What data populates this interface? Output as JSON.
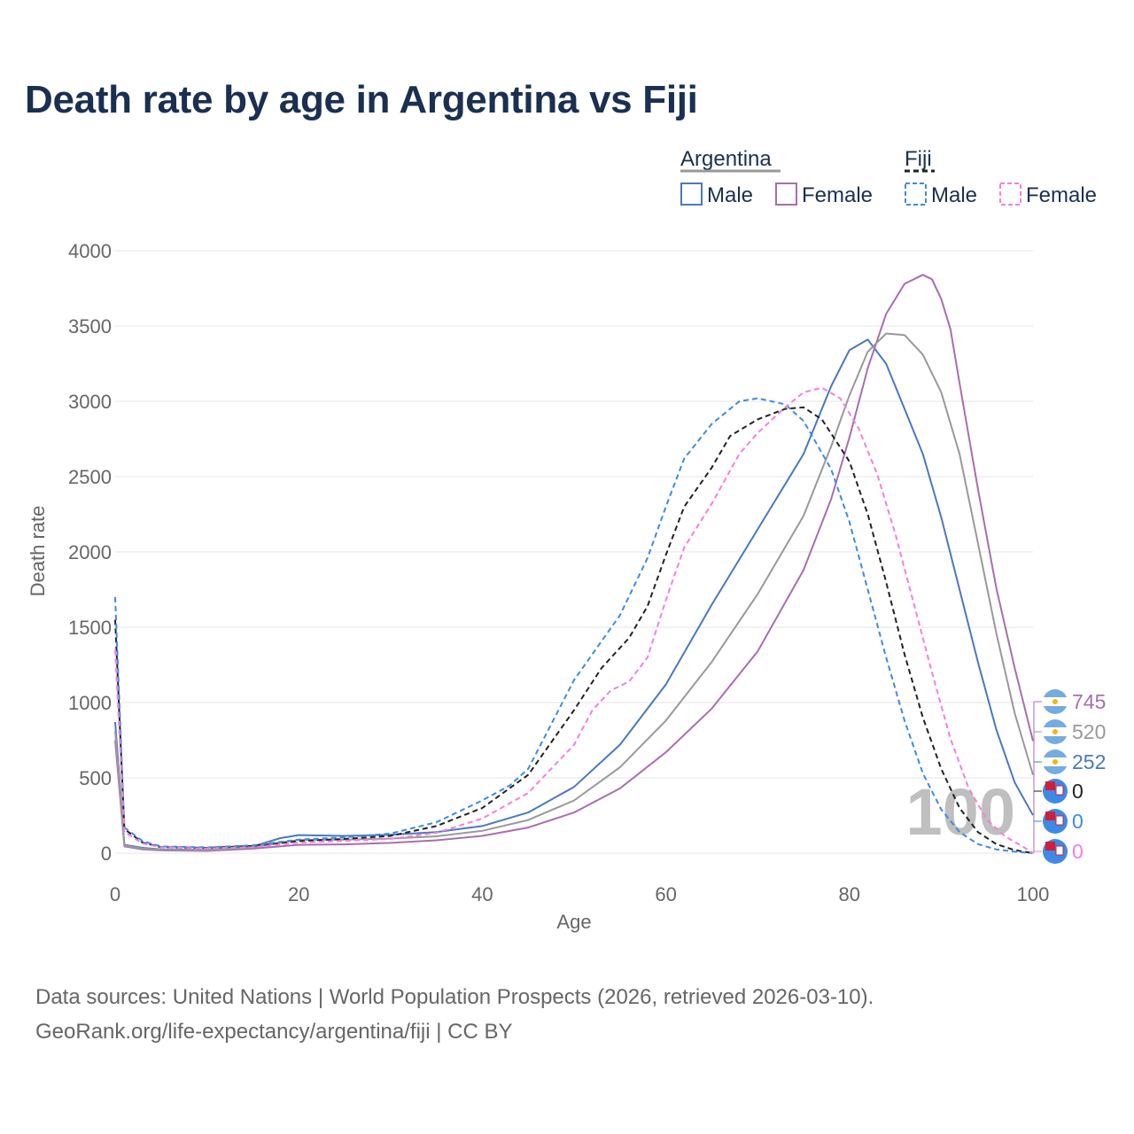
{
  "title": "Death rate by age in Argentina vs Fiji",
  "source": {
    "line1": "Data sources: United Nations | World Population Prospects (2026, retrieved 2026-03-10).",
    "line2": "GeoRank.org/life-expectancy/argentina/fiji | CC BY"
  },
  "legend": {
    "groups": [
      {
        "country": "Argentina",
        "line_color": "#999999",
        "line_style": "solid",
        "items": [
          {
            "label": "Male",
            "color": "#4a78c0",
            "dashed": false
          },
          {
            "label": "Female",
            "color": "#a96db0",
            "dashed": false
          }
        ]
      },
      {
        "country": "Fiji",
        "line_color": "#222222",
        "line_style": "dashed",
        "items": [
          {
            "label": "Male",
            "color": "#3d8ae6",
            "dashed": true
          },
          {
            "label": "Female",
            "color": "#f47ee0",
            "dashed": true
          }
        ]
      }
    ]
  },
  "watermark": "100",
  "end_labels": [
    {
      "value": "745",
      "color": "#a96db0",
      "flag": "argentina-flag-icon"
    },
    {
      "value": "520",
      "color": "#999999",
      "flag": "argentina-flag-icon"
    },
    {
      "value": "252",
      "color": "#4a78c0",
      "flag": "argentina-flag-icon"
    },
    {
      "value": "0",
      "color": "#222222",
      "flag": "fiji-flag-icon"
    },
    {
      "value": "0",
      "color": "#3d8ae6",
      "flag": "fiji-flag-icon"
    },
    {
      "value": "0",
      "color": "#f47ee0",
      "flag": "fiji-flag-icon"
    }
  ],
  "chart_data": {
    "type": "line",
    "title": "Death rate by age in Argentina vs Fiji",
    "xlabel": "Age",
    "ylabel": "Death rate",
    "xlim": [
      0,
      100
    ],
    "ylim": [
      0,
      4000
    ],
    "xticks": [
      0,
      20,
      40,
      60,
      80,
      100
    ],
    "yticks": [
      0,
      500,
      1000,
      1500,
      2000,
      2500,
      3000,
      3500,
      4000
    ],
    "grid": true,
    "series": [
      {
        "name": "Argentina Male",
        "country": "Argentina",
        "sex": "Male",
        "color": "#4a78c0",
        "dashed": false,
        "points": [
          [
            0,
            870
          ],
          [
            1,
            55
          ],
          [
            3,
            35
          ],
          [
            5,
            25
          ],
          [
            10,
            22
          ],
          [
            15,
            45
          ],
          [
            18,
            100
          ],
          [
            20,
            120
          ],
          [
            25,
            115
          ],
          [
            30,
            122
          ],
          [
            35,
            140
          ],
          [
            40,
            180
          ],
          [
            45,
            270
          ],
          [
            50,
            440
          ],
          [
            55,
            720
          ],
          [
            60,
            1120
          ],
          [
            65,
            1650
          ],
          [
            70,
            2150
          ],
          [
            75,
            2650
          ],
          [
            78,
            3100
          ],
          [
            80,
            3340
          ],
          [
            82,
            3410
          ],
          [
            84,
            3250
          ],
          [
            86,
            2950
          ],
          [
            88,
            2650
          ],
          [
            90,
            2230
          ],
          [
            92,
            1750
          ],
          [
            94,
            1270
          ],
          [
            96,
            820
          ],
          [
            98,
            470
          ],
          [
            100,
            252
          ]
        ]
      },
      {
        "name": "Argentina Female",
        "country": "Argentina",
        "sex": "Female",
        "color": "#a96db0",
        "dashed": false,
        "points": [
          [
            0,
            750
          ],
          [
            1,
            45
          ],
          [
            3,
            25
          ],
          [
            5,
            18
          ],
          [
            10,
            15
          ],
          [
            15,
            30
          ],
          [
            20,
            55
          ],
          [
            25,
            58
          ],
          [
            30,
            68
          ],
          [
            35,
            85
          ],
          [
            40,
            115
          ],
          [
            45,
            170
          ],
          [
            50,
            270
          ],
          [
            55,
            430
          ],
          [
            60,
            670
          ],
          [
            65,
            960
          ],
          [
            70,
            1340
          ],
          [
            75,
            1880
          ],
          [
            78,
            2350
          ],
          [
            80,
            2760
          ],
          [
            82,
            3220
          ],
          [
            84,
            3580
          ],
          [
            86,
            3780
          ],
          [
            88,
            3840
          ],
          [
            89,
            3810
          ],
          [
            90,
            3680
          ],
          [
            91,
            3480
          ],
          [
            92,
            3120
          ],
          [
            94,
            2420
          ],
          [
            96,
            1760
          ],
          [
            98,
            1230
          ],
          [
            100,
            745
          ]
        ]
      },
      {
        "name": "Argentina",
        "country": "Argentina",
        "sex": "Both",
        "color": "#999999",
        "dashed": false,
        "points": [
          [
            0,
            810
          ],
          [
            1,
            50
          ],
          [
            3,
            30
          ],
          [
            5,
            22
          ],
          [
            10,
            20
          ],
          [
            15,
            38
          ],
          [
            20,
            88
          ],
          [
            25,
            90
          ],
          [
            30,
            97
          ],
          [
            35,
            112
          ],
          [
            40,
            148
          ],
          [
            45,
            220
          ],
          [
            50,
            350
          ],
          [
            55,
            570
          ],
          [
            60,
            880
          ],
          [
            65,
            1270
          ],
          [
            70,
            1720
          ],
          [
            75,
            2240
          ],
          [
            78,
            2700
          ],
          [
            80,
            3040
          ],
          [
            82,
            3330
          ],
          [
            84,
            3450
          ],
          [
            86,
            3440
          ],
          [
            88,
            3310
          ],
          [
            90,
            3060
          ],
          [
            92,
            2650
          ],
          [
            94,
            2060
          ],
          [
            96,
            1460
          ],
          [
            98,
            930
          ],
          [
            100,
            520
          ]
        ]
      },
      {
        "name": "Fiji",
        "country": "Fiji",
        "sex": "Both",
        "color": "#222222",
        "dashed": true,
        "points": [
          [
            0,
            1550
          ],
          [
            1,
            160
          ],
          [
            3,
            70
          ],
          [
            5,
            40
          ],
          [
            10,
            35
          ],
          [
            15,
            48
          ],
          [
            20,
            80
          ],
          [
            25,
            95
          ],
          [
            30,
            115
          ],
          [
            35,
            180
          ],
          [
            40,
            300
          ],
          [
            45,
            520
          ],
          [
            50,
            950
          ],
          [
            53,
            1230
          ],
          [
            56,
            1430
          ],
          [
            58,
            1640
          ],
          [
            60,
            1980
          ],
          [
            62,
            2300
          ],
          [
            65,
            2560
          ],
          [
            67,
            2770
          ],
          [
            70,
            2880
          ],
          [
            73,
            2950
          ],
          [
            75,
            2960
          ],
          [
            77,
            2880
          ],
          [
            80,
            2600
          ],
          [
            82,
            2250
          ],
          [
            84,
            1800
          ],
          [
            86,
            1320
          ],
          [
            88,
            900
          ],
          [
            90,
            560
          ],
          [
            92,
            300
          ],
          [
            94,
            140
          ],
          [
            96,
            60
          ],
          [
            98,
            20
          ],
          [
            100,
            0
          ]
        ]
      },
      {
        "name": "Fiji Male",
        "country": "Fiji",
        "sex": "Male",
        "color": "#3d8ae6",
        "dashed": true,
        "points": [
          [
            0,
            1700
          ],
          [
            1,
            170
          ],
          [
            3,
            80
          ],
          [
            5,
            45
          ],
          [
            10,
            38
          ],
          [
            15,
            52
          ],
          [
            20,
            90
          ],
          [
            25,
            105
          ],
          [
            30,
            130
          ],
          [
            35,
            205
          ],
          [
            40,
            350
          ],
          [
            43,
            450
          ],
          [
            45,
            560
          ],
          [
            50,
            1150
          ],
          [
            55,
            1580
          ],
          [
            58,
            1960
          ],
          [
            60,
            2300
          ],
          [
            62,
            2620
          ],
          [
            65,
            2850
          ],
          [
            68,
            3000
          ],
          [
            70,
            3020
          ],
          [
            73,
            2980
          ],
          [
            75,
            2870
          ],
          [
            78,
            2550
          ],
          [
            80,
            2200
          ],
          [
            82,
            1750
          ],
          [
            84,
            1300
          ],
          [
            86,
            880
          ],
          [
            88,
            530
          ],
          [
            90,
            290
          ],
          [
            92,
            140
          ],
          [
            94,
            60
          ],
          [
            96,
            25
          ],
          [
            98,
            10
          ],
          [
            100,
            0
          ]
        ]
      },
      {
        "name": "Fiji Female",
        "country": "Fiji",
        "sex": "Female",
        "color": "#f47ee0",
        "dashed": true,
        "points": [
          [
            0,
            1350
          ],
          [
            1,
            140
          ],
          [
            3,
            65
          ],
          [
            5,
            38
          ],
          [
            10,
            32
          ],
          [
            15,
            40
          ],
          [
            20,
            70
          ],
          [
            25,
            82
          ],
          [
            30,
            95
          ],
          [
            35,
            135
          ],
          [
            40,
            230
          ],
          [
            45,
            400
          ],
          [
            50,
            720
          ],
          [
            52,
            950
          ],
          [
            54,
            1080
          ],
          [
            56,
            1140
          ],
          [
            58,
            1300
          ],
          [
            60,
            1680
          ],
          [
            62,
            2030
          ],
          [
            65,
            2320
          ],
          [
            68,
            2650
          ],
          [
            70,
            2790
          ],
          [
            73,
            2960
          ],
          [
            75,
            3060
          ],
          [
            77,
            3090
          ],
          [
            79,
            3020
          ],
          [
            81,
            2820
          ],
          [
            83,
            2520
          ],
          [
            85,
            2120
          ],
          [
            87,
            1660
          ],
          [
            89,
            1200
          ],
          [
            91,
            760
          ],
          [
            93,
            430
          ],
          [
            95,
            220
          ],
          [
            97,
            110
          ],
          [
            99,
            40
          ],
          [
            100,
            0
          ]
        ]
      }
    ]
  }
}
